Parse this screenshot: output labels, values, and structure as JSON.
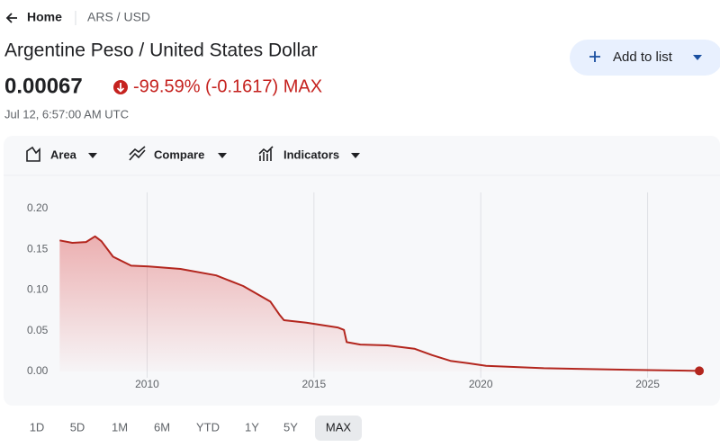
{
  "header": {
    "home": "Home",
    "pair": "ARS / USD"
  },
  "quote": {
    "title": "Argentine Peso / United States Dollar",
    "price": "0.00067",
    "change": "-99.59% (-0.1617) MAX",
    "timestamp": "Jul 12, 6:57:00 AM UTC"
  },
  "add_button": "Add to list",
  "toolbar": [
    "Area",
    "Compare",
    "Indicators"
  ],
  "ranges": [
    "1D",
    "5D",
    "1M",
    "6M",
    "YTD",
    "1Y",
    "5Y",
    "MAX"
  ],
  "selected_range": 7,
  "chart_data": {
    "type": "area",
    "x": [
      2007.38,
      2007.76,
      2008.17,
      2008.44,
      2008.63,
      2008.98,
      2009.52,
      2010.05,
      2011.0,
      2012.07,
      2012.88,
      2013.69,
      2013.96,
      2014.1,
      2014.77,
      2015.71,
      2015.9,
      2015.98,
      2016.39,
      2017.2,
      2018.01,
      2018.55,
      2019.09,
      2019.63,
      2020.16,
      2021.89,
      2024.58,
      2026.55
    ],
    "values": [
      0.161,
      0.158,
      0.159,
      0.166,
      0.16,
      0.141,
      0.13,
      0.129,
      0.126,
      0.118,
      0.105,
      0.086,
      0.07,
      0.063,
      0.06,
      0.054,
      0.051,
      0.036,
      0.033,
      0.032,
      0.028,
      0.02,
      0.013,
      0.01,
      0.007,
      0.004,
      0.002,
      0.00067
    ],
    "color": "#b3261e",
    "xlim": [
      2006.4,
      2026.9
    ],
    "ylim": [
      0,
      0.22
    ],
    "xticks": [
      2010,
      2015,
      2020,
      2025
    ],
    "yticks": [
      {
        "value": 0,
        "label": "0.00"
      },
      0.05,
      {
        "value": 0.1,
        "label": "0.10"
      },
      0.15,
      {
        "value": 0.2,
        "label": "0.20"
      }
    ],
    "grid": "x"
  }
}
